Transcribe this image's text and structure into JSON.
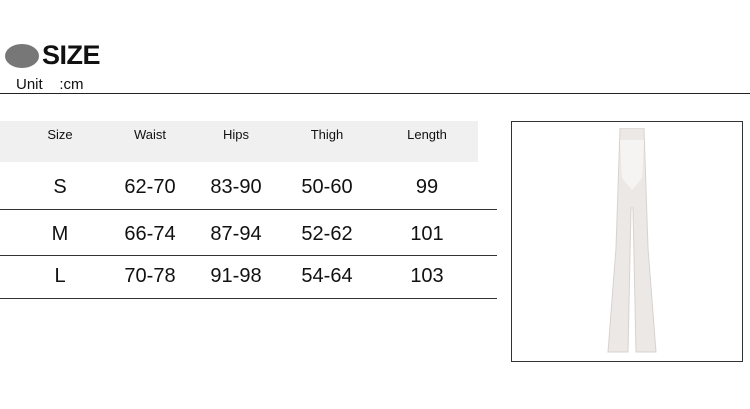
{
  "header": {
    "title": "SIZE",
    "unit": "Unit    :cm",
    "logo_icon": "lotus-logo-icon"
  },
  "table": {
    "columns": [
      "Size",
      "Waist",
      "Hips",
      "Thigh",
      "Length"
    ],
    "rows": [
      [
        "S",
        "62-70",
        "83-90",
        "50-60",
        "99"
      ],
      [
        "M",
        "66-74",
        "87-94",
        "52-62",
        "101"
      ],
      [
        "L",
        "70-78",
        "91-98",
        "54-64",
        "103"
      ]
    ]
  },
  "photo": {
    "alt_icon": "lace-flare-pants-image"
  }
}
